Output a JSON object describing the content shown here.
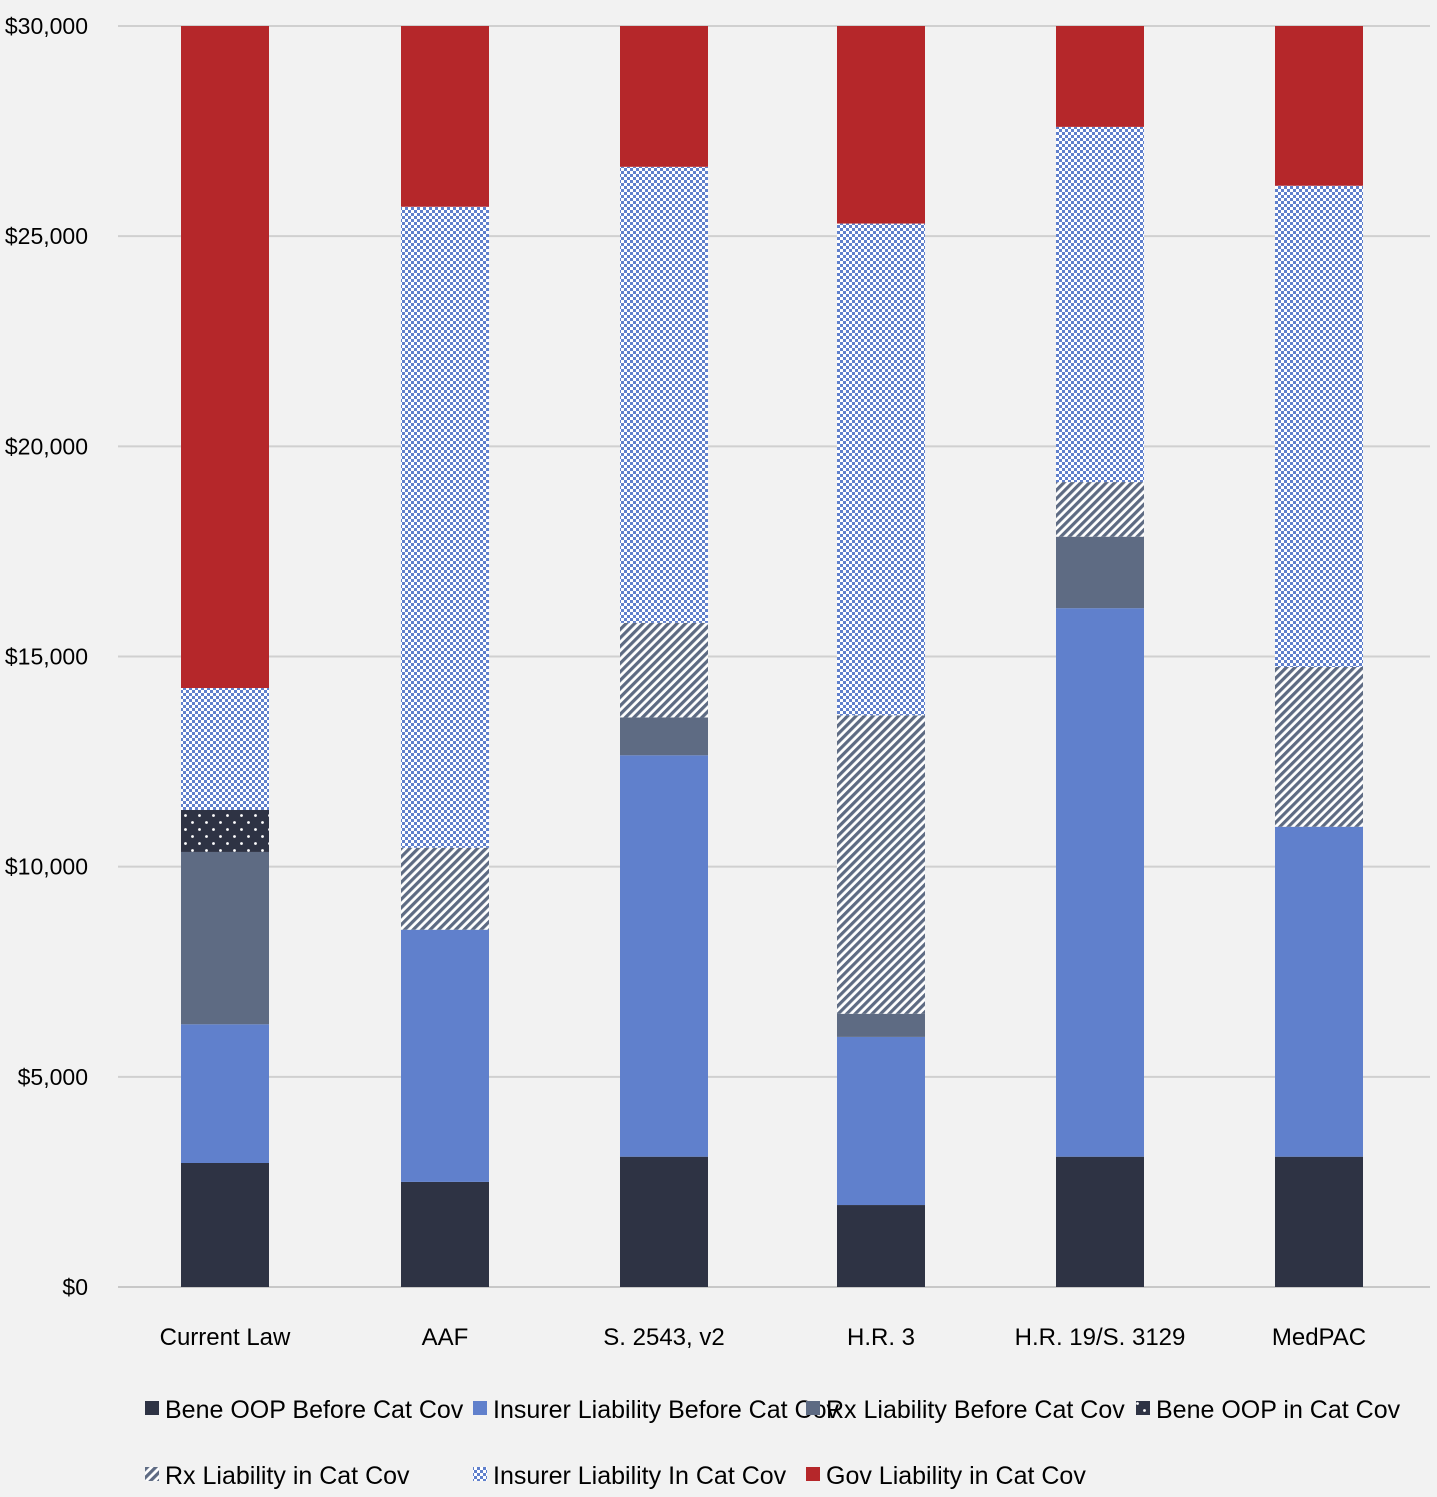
{
  "chart_data": {
    "type": "bar",
    "stacked": true,
    "title": "",
    "xlabel": "",
    "ylabel": "",
    "ylim": [
      0,
      30000
    ],
    "y_ticks": [
      0,
      5000,
      10000,
      15000,
      20000,
      25000,
      30000
    ],
    "y_tick_labels": [
      "$0",
      "$5,000",
      "$10,000",
      "$15,000",
      "$20,000",
      "$25,000",
      "$30,000"
    ],
    "grid": true,
    "legend_position": "bottom",
    "categories": [
      "Current Law",
      "AAF",
      "S. 2543, v2",
      "H.R. 3",
      "H.R. 19/S. 3129",
      "MedPAC"
    ],
    "series": [
      {
        "name": "Bene OOP Before Cat Cov",
        "color": "#2e3344",
        "pattern": "solid",
        "values": [
          2950,
          2500,
          3100,
          1950,
          3100,
          3100
        ]
      },
      {
        "name": "Insurer Liability Before Cat Cov",
        "color": "#6080cc",
        "pattern": "solid",
        "values": [
          3300,
          6000,
          9550,
          4000,
          13050,
          7850
        ]
      },
      {
        "name": "Rx Liability Before Cat Cov",
        "color": "#5e6b83",
        "pattern": "solid",
        "values": [
          4100,
          0,
          900,
          550,
          1700,
          0
        ]
      },
      {
        "name": "Bene OOP in Cat Cov",
        "color": "#2e3344",
        "pattern": "dots",
        "values": [
          1000,
          0,
          0,
          0,
          0,
          0
        ]
      },
      {
        "name": "Rx Liability in Cat Cov",
        "color": "#5e6b83",
        "pattern": "diagonal",
        "values": [
          0,
          1950,
          2250,
          7100,
          1300,
          3800
        ]
      },
      {
        "name": "Insurer Liability In Cat Cov",
        "color": "#6080cc",
        "pattern": "checker",
        "values": [
          2900,
          15250,
          10850,
          11700,
          8450,
          11450
        ]
      },
      {
        "name": "Gov Liability in Cat Cov",
        "color": "#b5272a",
        "pattern": "solid",
        "values": [
          15750,
          4300,
          3350,
          4700,
          2400,
          3800
        ]
      }
    ]
  }
}
